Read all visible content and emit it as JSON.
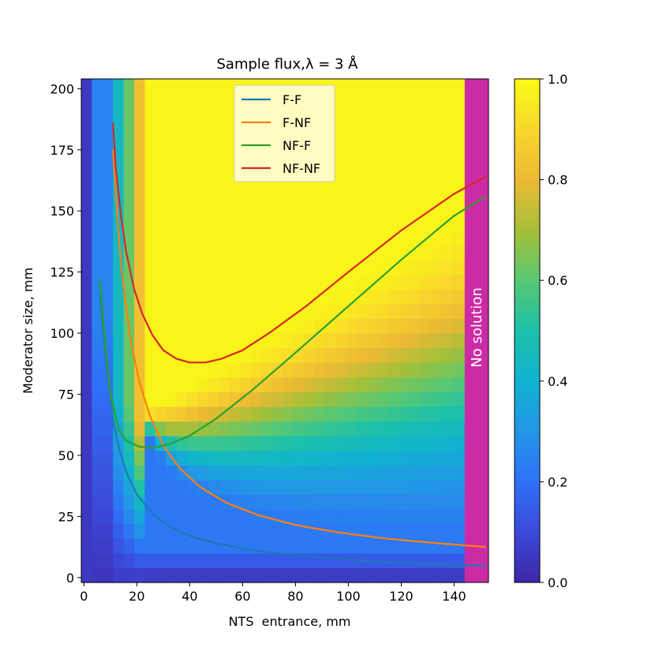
{
  "chart_data": {
    "type": "heatmap",
    "title": "Sample flux,λ = 3 Å",
    "xlabel": "NTS  entrance, mm",
    "ylabel": "Moderator size, mm",
    "xlim": [
      -1,
      153
    ],
    "ylim": [
      -2,
      204
    ],
    "x_ticks": [
      0,
      20,
      40,
      60,
      80,
      100,
      120,
      140
    ],
    "y_ticks": [
      0,
      25,
      50,
      75,
      100,
      125,
      150,
      175,
      200
    ],
    "colorbar": {
      "min": 0.0,
      "max": 1.0,
      "ticks": [
        "0.0",
        "0.2",
        "0.4",
        "0.6",
        "0.8",
        "1.0"
      ]
    },
    "no_solution_region": {
      "x_from": 144,
      "x_to": 153,
      "label": "No solution",
      "color": "#cc2ba6"
    },
    "legend": {
      "location": "upper-center"
    },
    "series": [
      {
        "name": "F-F",
        "color": "#1f77b4",
        "x": [
          6,
          8,
          11,
          13.5,
          16,
          20,
          26,
          32,
          40,
          50,
          62,
          76,
          92,
          110,
          130,
          152
        ],
        "y": [
          116,
          92,
          64,
          52,
          43,
          34,
          26,
          21,
          17,
          14,
          11.5,
          9.5,
          8,
          6.6,
          5.6,
          4.8
        ]
      },
      {
        "name": "F-NF",
        "color": "#ff7f0e",
        "x": [
          11,
          12.5,
          14,
          16,
          18,
          21,
          25,
          30,
          36,
          44,
          54,
          66,
          80,
          96,
          114,
          134,
          152
        ],
        "y": [
          175,
          150,
          128,
          110,
          95,
          80,
          66,
          54,
          45,
          37,
          30.5,
          25.5,
          21.5,
          18.5,
          16,
          14,
          12.5
        ]
      },
      {
        "name": "NF-F",
        "color": "#2ca02c",
        "x": [
          6,
          8,
          10,
          13,
          16,
          21,
          26,
          32,
          40,
          50,
          64,
          80,
          100,
          120,
          140,
          152
        ],
        "y": [
          122,
          96,
          75,
          61,
          56,
          53.5,
          53,
          54.5,
          58,
          65,
          77,
          92,
          111,
          130,
          148,
          156
        ]
      },
      {
        "name": "NF-NF",
        "color": "#d62728",
        "x": [
          11,
          12,
          14,
          16,
          19,
          22,
          26,
          30,
          35,
          40,
          46,
          52,
          60,
          70,
          84,
          100,
          120,
          140,
          152
        ],
        "y": [
          186,
          168,
          148,
          133,
          118,
          108,
          99,
          93,
          89.5,
          88,
          88,
          89.5,
          93,
          100,
          111,
          125,
          142,
          157,
          164
        ]
      }
    ]
  }
}
